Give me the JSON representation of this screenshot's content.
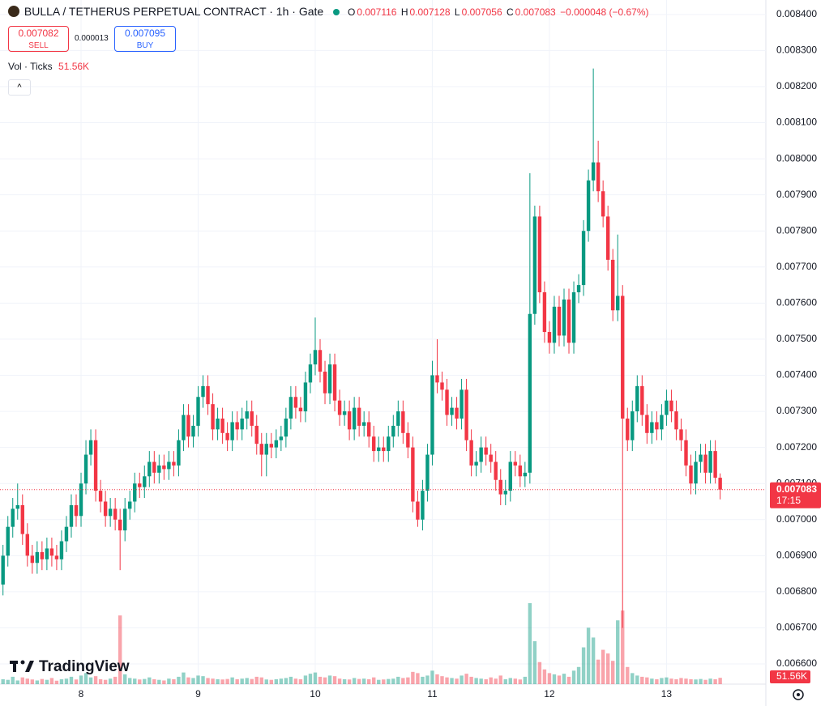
{
  "chart_data": {
    "type": "candlestick",
    "title": "BULLA / TETHERUS PERPETUAL CONTRACT · 1h · Gate",
    "legend_keys": {
      "open": "O",
      "high": "H",
      "low": "L",
      "close": "C"
    },
    "change": "−0.000048 (−0.67%)",
    "countdown": "17:15",
    "up_color": "#089981",
    "down_color": "#f23645",
    "grid": true,
    "categories": [
      null,
      null,
      null,
      null,
      null,
      null,
      null,
      null,
      null,
      null,
      null,
      null,
      null,
      null,
      null,
      null,
      "8",
      null,
      null,
      null,
      null,
      null,
      null,
      null,
      null,
      null,
      null,
      null,
      null,
      null,
      null,
      null,
      null,
      null,
      null,
      null,
      null,
      null,
      null,
      null,
      "9",
      null,
      null,
      null,
      null,
      null,
      null,
      null,
      null,
      null,
      null,
      null,
      null,
      null,
      null,
      null,
      null,
      null,
      null,
      null,
      null,
      null,
      null,
      null,
      "10",
      null,
      null,
      null,
      null,
      null,
      null,
      null,
      null,
      null,
      null,
      null,
      null,
      null,
      null,
      null,
      null,
      null,
      null,
      null,
      null,
      null,
      null,
      null,
      "11",
      null,
      null,
      null,
      null,
      null,
      null,
      null,
      null,
      null,
      null,
      null,
      null,
      null,
      null,
      null,
      null,
      null,
      null,
      null,
      null,
      null,
      null,
      null,
      "12",
      null,
      null,
      null,
      null,
      null,
      null,
      null,
      null,
      null,
      null,
      null,
      null,
      null,
      null,
      null,
      null,
      null,
      null,
      null,
      null,
      null,
      null,
      null,
      "13",
      null,
      null,
      null,
      null,
      null,
      null,
      null,
      null,
      null,
      null,
      null
    ],
    "open": [
      0.00682,
      0.0069,
      0.00698,
      0.00703,
      0.00704,
      0.00696,
      0.0069,
      0.00688,
      0.00691,
      0.00689,
      0.00692,
      0.0069,
      0.00689,
      0.00694,
      0.00698,
      0.00704,
      0.00701,
      0.0071,
      0.00718,
      0.00722,
      0.00708,
      0.00705,
      0.00701,
      0.00703,
      0.007,
      0.00697,
      0.00703,
      0.00705,
      0.0071,
      0.00709,
      0.00712,
      0.00716,
      0.00713,
      0.00715,
      0.00714,
      0.00716,
      0.00715,
      0.00722,
      0.00729,
      0.00723,
      0.00726,
      0.00734,
      0.00737,
      0.00732,
      0.00725,
      0.00728,
      0.00724,
      0.00722,
      0.00727,
      0.00725,
      0.00728,
      0.0073,
      0.00726,
      0.00721,
      0.00718,
      0.00721,
      0.0072,
      0.00722,
      0.00723,
      0.00728,
      0.00734,
      0.00731,
      0.0073,
      0.00738,
      0.00743,
      0.00747,
      0.00741,
      0.00735,
      0.00743,
      0.00733,
      0.00729,
      0.0073,
      0.00725,
      0.00731,
      0.00726,
      0.00727,
      0.00723,
      0.00719,
      0.0072,
      0.00719,
      0.00723,
      0.00726,
      0.0073,
      0.00724,
      0.0072,
      0.00705,
      0.007,
      0.00708,
      0.00718,
      0.0074,
      0.00738,
      0.00736,
      0.00729,
      0.00731,
      0.00728,
      0.00736,
      0.00722,
      0.00715,
      0.00716,
      0.0072,
      0.00718,
      0.00716,
      0.00711,
      0.00707,
      0.00708,
      0.00716,
      0.00715,
      0.00712,
      0.00713,
      0.00757,
      0.00784,
      0.00763,
      0.00752,
      0.00749,
      0.00759,
      0.00751,
      0.00761,
      0.00749,
      0.00763,
      0.00765,
      0.0078,
      0.00794,
      0.00799,
      0.00791,
      0.00784,
      0.00772,
      0.00758,
      0.00762,
      0.00728,
      0.00722,
      0.0073,
      0.00737,
      0.00729,
      0.00724,
      0.00727,
      0.00725,
      0.00729,
      0.00733,
      0.0073,
      0.00725,
      0.00722,
      0.00715,
      0.0071,
      0.00716,
      0.00718,
      0.00713,
      0.00719,
      0.007116
    ],
    "high": [
      0.00693,
      0.00701,
      0.00706,
      0.0071,
      0.00707,
      0.00699,
      0.00693,
      0.00694,
      0.00694,
      0.00695,
      0.00695,
      0.00693,
      0.00697,
      0.00701,
      0.00707,
      0.00707,
      0.00713,
      0.00722,
      0.00725,
      0.00725,
      0.00711,
      0.00708,
      0.00706,
      0.00706,
      0.00703,
      0.00706,
      0.00708,
      0.00713,
      0.00713,
      0.00715,
      0.00719,
      0.00719,
      0.00718,
      0.00718,
      0.00719,
      0.00719,
      0.00725,
      0.00732,
      0.00732,
      0.00729,
      0.00737,
      0.0074,
      0.0074,
      0.00735,
      0.00731,
      0.00731,
      0.00727,
      0.0073,
      0.0073,
      0.00731,
      0.00733,
      0.00733,
      0.00729,
      0.00724,
      0.00724,
      0.00724,
      0.00725,
      0.00726,
      0.00731,
      0.00737,
      0.00737,
      0.00734,
      0.00741,
      0.00746,
      0.00756,
      0.0075,
      0.00744,
      0.00746,
      0.00746,
      0.00736,
      0.00733,
      0.00733,
      0.00734,
      0.00734,
      0.0073,
      0.0073,
      0.00726,
      0.00723,
      0.00723,
      0.00726,
      0.00729,
      0.00733,
      0.00733,
      0.00727,
      0.00723,
      0.00708,
      0.00711,
      0.00721,
      0.00744,
      0.0075,
      0.00741,
      0.00739,
      0.00734,
      0.00734,
      0.00739,
      0.00739,
      0.00725,
      0.00719,
      0.00723,
      0.00723,
      0.00721,
      0.00719,
      0.00714,
      0.00711,
      0.00719,
      0.00719,
      0.00718,
      0.00716,
      0.00796,
      0.00787,
      0.00787,
      0.00766,
      0.00755,
      0.00762,
      0.00762,
      0.00764,
      0.00764,
      0.00766,
      0.00768,
      0.00783,
      0.00797,
      0.00825,
      0.00805,
      0.00794,
      0.00787,
      0.00775,
      0.00779,
      0.00765,
      0.00731,
      0.00733,
      0.0074,
      0.0074,
      0.00732,
      0.0073,
      0.0073,
      0.00732,
      0.00736,
      0.00736,
      0.00733,
      0.00728,
      0.00725,
      0.00718,
      0.00719,
      0.00721,
      0.00721,
      0.00722,
      0.00722,
      0.007128
    ],
    "low": [
      0.00679,
      0.00687,
      0.00695,
      0.007,
      0.00693,
      0.00687,
      0.00685,
      0.00685,
      0.00686,
      0.00686,
      0.00687,
      0.00686,
      0.00686,
      0.00691,
      0.00695,
      0.00698,
      0.00698,
      0.00707,
      0.00715,
      0.00705,
      0.00702,
      0.00698,
      0.00698,
      0.00697,
      0.00686,
      0.00694,
      0.007,
      0.00702,
      0.00706,
      0.00706,
      0.00709,
      0.0071,
      0.0071,
      0.00711,
      0.00711,
      0.00712,
      0.00712,
      0.00719,
      0.0072,
      0.0072,
      0.00723,
      0.00731,
      0.00729,
      0.00722,
      0.00722,
      0.00721,
      0.00719,
      0.00719,
      0.00722,
      0.00722,
      0.00725,
      0.00723,
      0.00718,
      0.00712,
      0.00712,
      0.00717,
      0.00717,
      0.00719,
      0.0072,
      0.00725,
      0.00728,
      0.00727,
      0.00727,
      0.00735,
      0.0074,
      0.00738,
      0.00732,
      0.00732,
      0.0073,
      0.00726,
      0.00726,
      0.00722,
      0.00722,
      0.00723,
      0.00723,
      0.0072,
      0.00716,
      0.00716,
      0.00716,
      0.00716,
      0.0072,
      0.00723,
      0.00721,
      0.00717,
      0.00702,
      0.00698,
      0.00697,
      0.00705,
      0.00715,
      0.00735,
      0.00733,
      0.00726,
      0.00726,
      0.00725,
      0.00725,
      0.00719,
      0.00712,
      0.00712,
      0.00713,
      0.00715,
      0.00713,
      0.00708,
      0.00704,
      0.00704,
      0.00705,
      0.00712,
      0.00709,
      0.00709,
      0.0071,
      0.00754,
      0.0076,
      0.00749,
      0.00746,
      0.00746,
      0.00748,
      0.00748,
      0.00746,
      0.00746,
      0.0076,
      0.00762,
      0.00777,
      0.00791,
      0.00788,
      0.00781,
      0.00769,
      0.00755,
      0.00755,
      0.0067,
      0.00719,
      0.00719,
      0.00727,
      0.00726,
      0.00721,
      0.00721,
      0.00722,
      0.00722,
      0.00726,
      0.00727,
      0.00722,
      0.00719,
      0.00712,
      0.00707,
      0.00707,
      0.00713,
      0.0071,
      0.0071,
      0.0071,
      0.007056
    ],
    "close": [
      0.0069,
      0.00698,
      0.00703,
      0.00704,
      0.00696,
      0.0069,
      0.00688,
      0.00691,
      0.00689,
      0.00692,
      0.0069,
      0.00689,
      0.00694,
      0.00698,
      0.00704,
      0.00701,
      0.0071,
      0.00718,
      0.00722,
      0.00708,
      0.00705,
      0.00701,
      0.00703,
      0.007,
      0.00697,
      0.00703,
      0.00705,
      0.0071,
      0.00709,
      0.00712,
      0.00716,
      0.00713,
      0.00715,
      0.00714,
      0.00716,
      0.00715,
      0.00722,
      0.00729,
      0.00723,
      0.00726,
      0.00734,
      0.00737,
      0.00732,
      0.00725,
      0.00728,
      0.00724,
      0.00722,
      0.00727,
      0.00725,
      0.00728,
      0.0073,
      0.00726,
      0.00721,
      0.00718,
      0.00721,
      0.0072,
      0.00722,
      0.00723,
      0.00728,
      0.00734,
      0.00731,
      0.0073,
      0.00738,
      0.00743,
      0.00747,
      0.00741,
      0.00735,
      0.00743,
      0.00733,
      0.00729,
      0.0073,
      0.00725,
      0.00731,
      0.00726,
      0.00727,
      0.00723,
      0.00719,
      0.0072,
      0.00719,
      0.00723,
      0.00726,
      0.0073,
      0.00724,
      0.0072,
      0.00705,
      0.007,
      0.00708,
      0.00718,
      0.0074,
      0.00738,
      0.00736,
      0.00729,
      0.00731,
      0.00728,
      0.00736,
      0.00722,
      0.00715,
      0.00716,
      0.0072,
      0.00718,
      0.00716,
      0.00711,
      0.00707,
      0.00708,
      0.00716,
      0.00715,
      0.00712,
      0.00713,
      0.00757,
      0.00784,
      0.00763,
      0.00752,
      0.00749,
      0.00759,
      0.00751,
      0.00761,
      0.00749,
      0.00763,
      0.00765,
      0.0078,
      0.00794,
      0.00799,
      0.00791,
      0.00784,
      0.00772,
      0.00758,
      0.00762,
      0.00728,
      0.00722,
      0.0073,
      0.00737,
      0.00729,
      0.00724,
      0.00727,
      0.00725,
      0.00729,
      0.00733,
      0.0073,
      0.00725,
      0.00722,
      0.00715,
      0.0071,
      0.00716,
      0.00718,
      0.00713,
      0.00719,
      0.007116,
      0.007083
    ],
    "volume": {
      "name": "Vol · Ticks",
      "last_label": "51.56K",
      "values": [
        40000,
        35000,
        60000,
        30000,
        55000,
        45000,
        38000,
        30000,
        42000,
        35000,
        50000,
        28000,
        40000,
        45000,
        60000,
        38000,
        70000,
        90000,
        55000,
        65000,
        40000,
        35000,
        45000,
        60000,
        560000,
        80000,
        50000,
        45000,
        38000,
        42000,
        55000,
        40000,
        35000,
        30000,
        45000,
        40000,
        60000,
        95000,
        55000,
        50000,
        70000,
        65000,
        50000,
        45000,
        40000,
        38000,
        42000,
        55000,
        40000,
        45000,
        50000,
        42000,
        60000,
        55000,
        38000,
        35000,
        40000,
        45000,
        50000,
        60000,
        45000,
        40000,
        70000,
        85000,
        95000,
        60000,
        55000,
        70000,
        65000,
        45000,
        40000,
        38000,
        50000,
        42000,
        45000,
        40000,
        55000,
        35000,
        38000,
        42000,
        45000,
        60000,
        50000,
        55000,
        100000,
        90000,
        60000,
        70000,
        110000,
        80000,
        65000,
        55000,
        50000,
        45000,
        70000,
        85000,
        60000,
        50000,
        45000,
        40000,
        55000,
        45000,
        70000,
        40000,
        50000,
        45000,
        38000,
        60000,
        660000,
        350000,
        180000,
        120000,
        90000,
        80000,
        70000,
        85000,
        60000,
        110000,
        140000,
        300000,
        460000,
        380000,
        200000,
        280000,
        250000,
        190000,
        520000,
        600000,
        140000,
        90000,
        70000,
        60000,
        55000,
        45000,
        40000,
        50000,
        55000,
        45000,
        40000,
        50000,
        45000,
        40000,
        38000,
        42000,
        35000,
        45000,
        40000,
        51560
      ]
    },
    "ylim": [
      0.006544,
      0.00844
    ],
    "yticks": [
      {
        "value": 0.0066,
        "label": "0.006600"
      },
      {
        "value": 0.0067,
        "label": "0.006700"
      },
      {
        "value": 0.0068,
        "label": "0.006800"
      },
      {
        "value": 0.0069,
        "label": "0.006900"
      },
      {
        "value": 0.007,
        "label": "0.007000"
      },
      {
        "value": 0.0071,
        "label": "0.007100"
      },
      {
        "value": 0.0072,
        "label": "0.007200"
      },
      {
        "value": 0.0073,
        "label": "0.007300"
      },
      {
        "value": 0.0074,
        "label": "0.007400"
      },
      {
        "value": 0.0075,
        "label": "0.007500"
      },
      {
        "value": 0.0076,
        "label": "0.007600"
      },
      {
        "value": 0.0077,
        "label": "0.007700"
      },
      {
        "value": 0.0078,
        "label": "0.007800"
      },
      {
        "value": 0.0079,
        "label": "0.007900"
      },
      {
        "value": 0.008,
        "label": "0.008000"
      },
      {
        "value": 0.0081,
        "label": "0.008100"
      },
      {
        "value": 0.0082,
        "label": "0.008200"
      },
      {
        "value": 0.0083,
        "label": "0.008300"
      },
      {
        "value": 0.0084,
        "label": "0.008400"
      }
    ]
  },
  "trade_panel": {
    "sell_price": "0.007082",
    "sell_label": "SELL",
    "spread": "0.000013",
    "buy_price": "0.007095",
    "buy_label": "BUY"
  },
  "brand": "TradingView"
}
